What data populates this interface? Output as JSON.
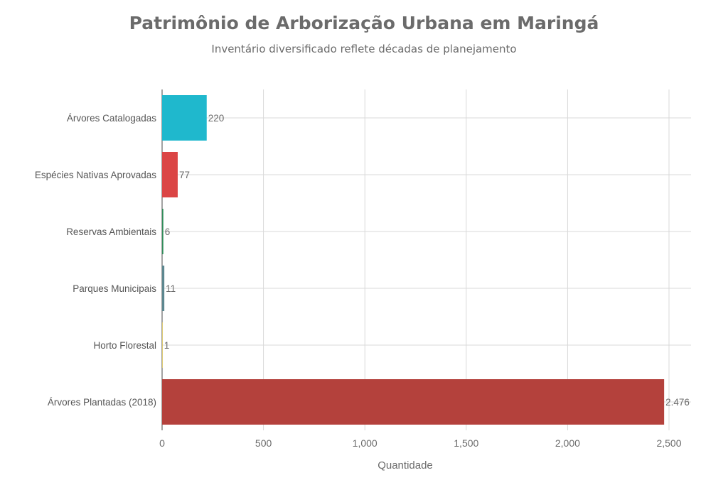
{
  "chart_data": {
    "type": "bar",
    "orientation": "horizontal",
    "title": "Patrimônio de Arborização Urbana em Maringá",
    "subtitle": "Inventário diversificado reflete décadas de planejamento",
    "xlabel": "Quantidade",
    "ylabel": "",
    "xlim": [
      0,
      2600
    ],
    "x_ticks": [
      0,
      500,
      1000,
      1500,
      2000,
      2500
    ],
    "x_tick_labels": [
      "0",
      "500",
      "1,000",
      "1,500",
      "2,000",
      "2,500"
    ],
    "grid": true,
    "legend": "none",
    "categories": [
      "Árvores Catalogadas",
      "Espécies Nativas Aprovadas",
      "Reservas Ambientais",
      "Parques Municipais",
      "Horto Florestal",
      "Árvores Plantadas (2018)"
    ],
    "values": [
      220,
      77,
      6,
      11,
      1,
      2476
    ],
    "value_labels": [
      "220",
      "77",
      "6",
      "11",
      "1",
      "2.476"
    ],
    "colors": [
      "#1fb8cd",
      "#db4545",
      "#2e8b57",
      "#5d878f",
      "#d2ba4c",
      "#b4413c"
    ]
  }
}
